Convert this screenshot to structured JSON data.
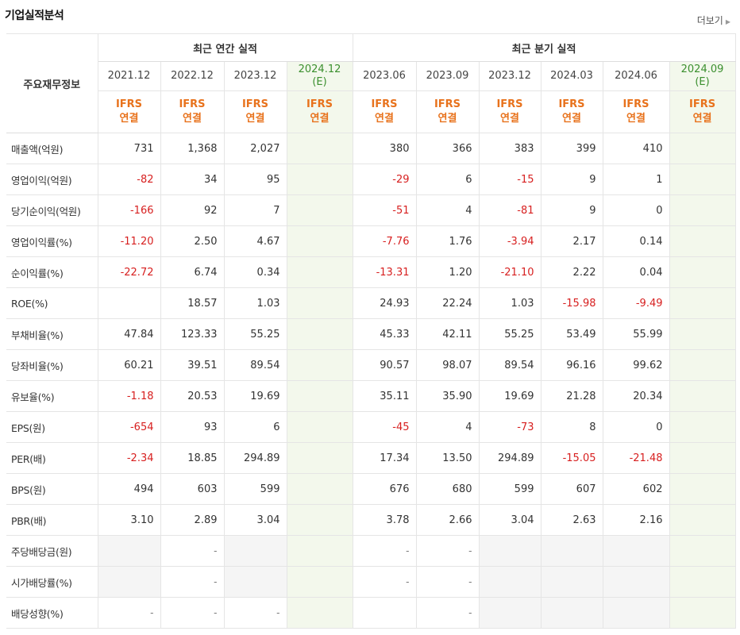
{
  "section": {
    "title": "기업실적분석",
    "more_label": "더보기"
  },
  "header": {
    "row_label": "주요재무정보",
    "annual_label": "최근 연간 실적",
    "quarter_label": "최근 분기 실적",
    "periods": [
      {
        "date": "2021.12",
        "est": ""
      },
      {
        "date": "2022.12",
        "est": ""
      },
      {
        "date": "2023.12",
        "est": ""
      },
      {
        "date": "2024.12",
        "est": "(E)"
      },
      {
        "date": "2023.06",
        "est": ""
      },
      {
        "date": "2023.09",
        "est": ""
      },
      {
        "date": "2023.12",
        "est": ""
      },
      {
        "date": "2024.03",
        "est": ""
      },
      {
        "date": "2024.06",
        "est": ""
      },
      {
        "date": "2024.09",
        "est": "(E)"
      }
    ],
    "ifrs_top": "IFRS",
    "ifrs_bottom": "연결"
  },
  "rows": [
    {
      "label": "매출액(억원)",
      "values": [
        "731",
        "1,368",
        "2,027",
        "",
        "380",
        "366",
        "383",
        "399",
        "410",
        ""
      ]
    },
    {
      "label": "영업이익(억원)",
      "values": [
        "-82",
        "34",
        "95",
        "",
        "-29",
        "6",
        "-15",
        "9",
        "1",
        ""
      ]
    },
    {
      "label": "당기순이익(억원)",
      "values": [
        "-166",
        "92",
        "7",
        "",
        "-51",
        "4",
        "-81",
        "9",
        "0",
        ""
      ]
    },
    {
      "label": "영업이익률(%)",
      "values": [
        "-11.20",
        "2.50",
        "4.67",
        "",
        "-7.76",
        "1.76",
        "-3.94",
        "2.17",
        "0.14",
        ""
      ]
    },
    {
      "label": "순이익률(%)",
      "values": [
        "-22.72",
        "6.74",
        "0.34",
        "",
        "-13.31",
        "1.20",
        "-21.10",
        "2.22",
        "0.04",
        ""
      ]
    },
    {
      "label": "ROE(%)",
      "values": [
        "",
        "18.57",
        "1.03",
        "",
        "24.93",
        "22.24",
        "1.03",
        "-15.98",
        "-9.49",
        ""
      ]
    },
    {
      "label": "부채비율(%)",
      "values": [
        "47.84",
        "123.33",
        "55.25",
        "",
        "45.33",
        "42.11",
        "55.25",
        "53.49",
        "55.99",
        ""
      ]
    },
    {
      "label": "당좌비율(%)",
      "values": [
        "60.21",
        "39.51",
        "89.54",
        "",
        "90.57",
        "98.07",
        "89.54",
        "96.16",
        "99.62",
        ""
      ]
    },
    {
      "label": "유보율(%)",
      "values": [
        "-1.18",
        "20.53",
        "19.69",
        "",
        "35.11",
        "35.90",
        "19.69",
        "21.28",
        "20.34",
        ""
      ]
    },
    {
      "label": "EPS(원)",
      "values": [
        "-654",
        "93",
        "6",
        "",
        "-45",
        "4",
        "-73",
        "8",
        "0",
        ""
      ]
    },
    {
      "label": "PER(배)",
      "values": [
        "-2.34",
        "18.85",
        "294.89",
        "",
        "17.34",
        "13.50",
        "294.89",
        "-15.05",
        "-21.48",
        ""
      ]
    },
    {
      "label": "BPS(원)",
      "values": [
        "494",
        "603",
        "599",
        "",
        "676",
        "680",
        "599",
        "607",
        "602",
        ""
      ]
    },
    {
      "label": "PBR(배)",
      "values": [
        "3.10",
        "2.89",
        "3.04",
        "",
        "3.78",
        "2.66",
        "3.04",
        "2.63",
        "2.16",
        ""
      ]
    },
    {
      "label": "주당배당금(원)",
      "values": [
        "",
        "-",
        "",
        "",
        "-",
        "-",
        "",
        "",
        "",
        ""
      ]
    },
    {
      "label": "시가배당률(%)",
      "values": [
        "",
        "-",
        "",
        "",
        "-",
        "-",
        "",
        "",
        "",
        ""
      ]
    },
    {
      "label": "배당성향(%)",
      "values": [
        "-",
        "-",
        "-",
        "",
        "",
        "-",
        "",
        "",
        "",
        ""
      ]
    }
  ],
  "empty_cells": [
    [
      13,
      0
    ],
    [
      13,
      2
    ],
    [
      13,
      6
    ],
    [
      13,
      7
    ],
    [
      13,
      8
    ],
    [
      14,
      0
    ],
    [
      14,
      2
    ],
    [
      14,
      6
    ],
    [
      14,
      7
    ],
    [
      14,
      8
    ],
    [
      15,
      6
    ],
    [
      15,
      7
    ],
    [
      15,
      8
    ]
  ],
  "colors": {
    "negative": "#d71f1f",
    "ifrs": "#e8721c",
    "estimate_bg": "#f3f8ec",
    "estimate_text": "#3b8f2e"
  }
}
